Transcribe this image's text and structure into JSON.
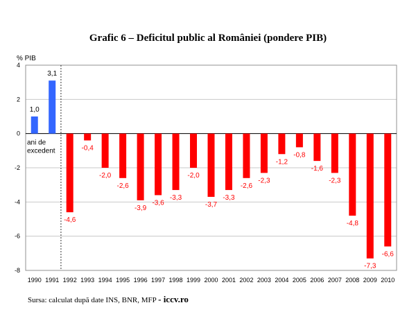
{
  "chart_data": {
    "type": "bar",
    "title": "Grafic 6 – Deficitul public al României (pondere PIB)",
    "ylabel": "% PIB",
    "xlabel": "",
    "ylim": [
      -8,
      4
    ],
    "yticks": [
      4,
      2,
      0,
      -2,
      -4,
      -6,
      -8
    ],
    "grid": true,
    "categories": [
      "1990",
      "1991",
      "1992",
      "1993",
      "1994",
      "1995",
      "1996",
      "1997",
      "1998",
      "1999",
      "2000",
      "2001",
      "2002",
      "2003",
      "2004",
      "2005",
      "2006",
      "2007",
      "2008",
      "2009",
      "2010"
    ],
    "values": [
      1.0,
      3.1,
      -4.6,
      -0.4,
      -2.0,
      -2.6,
      -3.9,
      -3.6,
      -3.3,
      -2.0,
      -3.7,
      -3.3,
      -2.6,
      -2.3,
      -1.2,
      -0.8,
      -1.6,
      -2.3,
      -4.8,
      -7.3,
      -6.6
    ],
    "data_labels": [
      "1,0",
      "3,1",
      "-4,6",
      "-0,4",
      "-2,0",
      "-2,6",
      "-3,9",
      "-3,6",
      "-3,3",
      "-2,0",
      "-3,7",
      "-3,3",
      "-2,6",
      "-2,3",
      "-1,2",
      "-0,8",
      "-1,6",
      "-2,3",
      "-4,8",
      "-7,3",
      "-6,6"
    ],
    "annotation": "ani de excedent",
    "colors": {
      "surplus": "#3366ff",
      "deficit": "#ff0000"
    }
  },
  "source": {
    "text": "Sursa: calculat după date INS, BNR, MFP",
    "brand": "- iccv.ro"
  }
}
